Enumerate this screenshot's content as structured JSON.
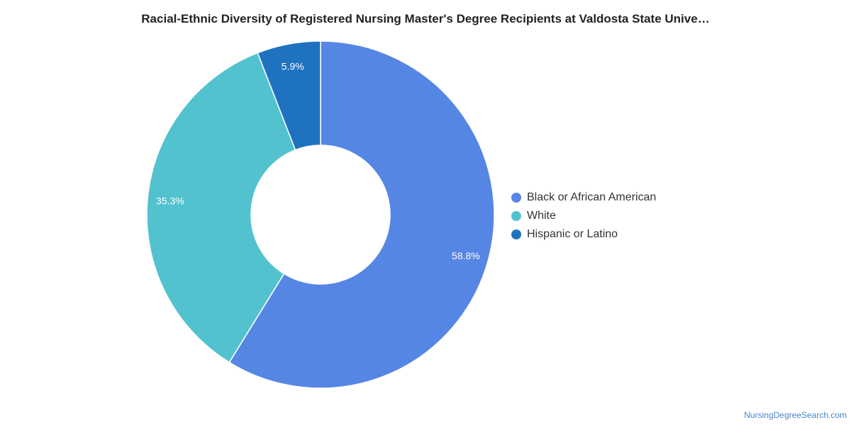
{
  "chart_data": {
    "type": "pie",
    "title": "Racial-Ethnic Diversity of Registered Nursing Master's Degree Recipients at Valdosta State Unive…",
    "donut": true,
    "slices": [
      {
        "name": "Black or African American",
        "value": 58.8,
        "label": "58.8%",
        "color": "#5686e4"
      },
      {
        "name": "White",
        "value": 35.3,
        "label": "35.3%",
        "color": "#52c2cf"
      },
      {
        "name": "Hispanic or Latino",
        "value": 5.9,
        "label": "5.9%",
        "color": "#1f72c0"
      }
    ],
    "legend_position": "right"
  },
  "source": "NursingDegreeSearch.com"
}
